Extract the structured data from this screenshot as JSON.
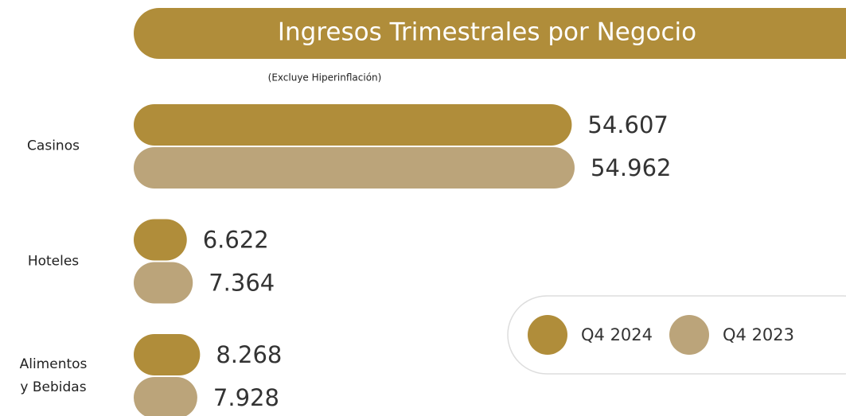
{
  "chart_data": {
    "type": "bar",
    "orientation": "horizontal",
    "title": "Ingresos Trimestrales por Negocio",
    "subtitle": "(Excluye Hiperinflación)",
    "categories": [
      "Casinos",
      "Hoteles",
      "Alimentos\ny Bebidas"
    ],
    "series": [
      {
        "name": "Q4 2024",
        "color": "#b08d3a",
        "values": [
          54607,
          6622,
          8268
        ],
        "value_labels": [
          "54.607",
          "6.622",
          "8.268"
        ]
      },
      {
        "name": "Q4 2023",
        "color": "#bba47a",
        "values": [
          54962,
          7364,
          7928
        ],
        "value_labels": [
          "54.962",
          "7.364",
          "7.928"
        ]
      }
    ]
  }
}
